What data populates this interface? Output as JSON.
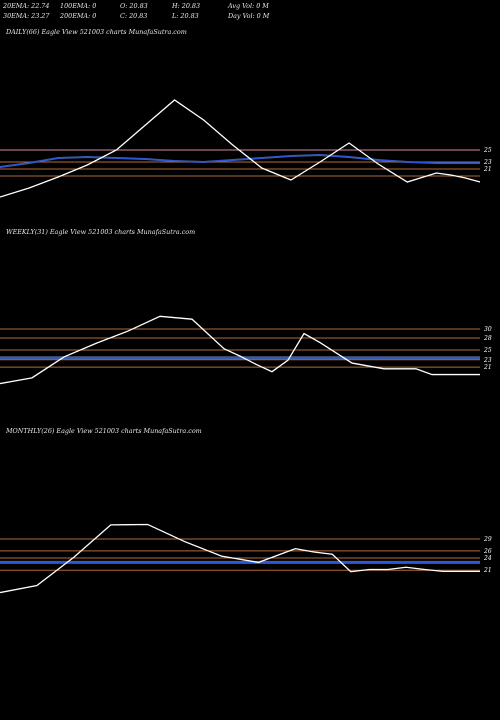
{
  "header": {
    "row1": [
      "20EMA: 22.74",
      "100EMA: 0",
      "O: 20.83",
      "H: 20.83",
      "Avg Vol: 0  M"
    ],
    "row2": [
      "30EMA: 23.27",
      "200EMA: 0",
      "C: 20.83",
      "L: 20.83",
      "Day Vol: 0  M"
    ]
  },
  "colors": {
    "background": "#000000",
    "price": "#ffffff",
    "ema_blue": "#2a55d8",
    "ema_band": "#7fa0e6",
    "level_line": "#b06a3a",
    "level_pink": "#d98aa0",
    "tick": "#ffffff"
  },
  "chart_data": [
    {
      "type": "line",
      "title": "DAILY(66) Eagle  View  521003 charts MunafaSutra.com",
      "yticks": [
        "25",
        "23",
        "21"
      ],
      "ylim": [
        19,
        35
      ],
      "x": [
        0,
        4,
        8,
        12,
        16,
        20,
        24,
        28,
        32,
        36,
        40,
        44,
        48,
        52,
        56,
        60,
        62,
        64,
        66
      ],
      "series": [
        {
          "values": [
            19.3,
            20.2,
            21.3,
            22.5,
            24.0,
            26.5,
            29.0,
            27.0,
            24.5,
            22.2,
            21.0,
            22.8,
            24.7,
            22.6,
            20.8,
            21.7,
            21.5,
            21.2,
            20.8
          ]
        },
        {
          "values": [
            22.3,
            22.7,
            23.2,
            23.3,
            23.2,
            23.1,
            22.9,
            22.8,
            23.0,
            23.2,
            23.4,
            23.5,
            23.3,
            23.0,
            22.8,
            22.7,
            22.7,
            22.7,
            22.7
          ]
        }
      ],
      "levels": [
        24.0,
        22.8,
        22.1,
        21.4
      ]
    },
    {
      "type": "line",
      "title": "WEEKLY(31) Eagle  View  521003 charts MunafaSutra.com",
      "yticks": [
        "30",
        "28",
        "25",
        "23",
        "21"
      ],
      "ylim": [
        13,
        52
      ],
      "x": [
        0,
        2,
        4,
        6,
        8,
        10,
        12,
        14,
        15,
        16,
        17,
        18,
        19,
        20,
        22,
        24,
        26,
        27,
        28,
        29,
        30
      ],
      "series": [
        {
          "values": [
            17.0,
            18.4,
            23.5,
            26.8,
            29.8,
            33.4,
            32.7,
            25.5,
            23.7,
            21.7,
            19.9,
            22.7,
            29.2,
            27.0,
            22.0,
            20.6,
            20.6,
            19.2,
            19.2,
            19.2,
            19.2
          ]
        },
        {
          "values": [
            23.3,
            23.3,
            23.3,
            23.3,
            23.3,
            23.3,
            23.3,
            23.3,
            23.3,
            23.3,
            23.3,
            23.3,
            23.3,
            23.3,
            23.3,
            23.3,
            23.3,
            23.3,
            23.3,
            23.3,
            23.3
          ]
        }
      ],
      "levels": [
        30.3,
        28.1,
        25.2,
        22.8,
        21.0
      ]
    },
    {
      "type": "line",
      "title": "MONTHLY(26) Eagle  View  521003 charts MunafaSutra.com",
      "yticks": [
        "29",
        "26",
        "24",
        "21"
      ],
      "ylim": [
        13,
        56
      ],
      "x": [
        0,
        2,
        4,
        6,
        8,
        10,
        12,
        14,
        16,
        17,
        18,
        19,
        20,
        21,
        22,
        23,
        24,
        25,
        26
      ],
      "series": [
        {
          "values": [
            15.0,
            16.9,
            24.5,
            33.2,
            33.3,
            28.7,
            24.8,
            23.1,
            26.8,
            25.9,
            25.3,
            20.6,
            21.2,
            21.2,
            21.8,
            21.2,
            20.7,
            20.7,
            20.7
          ]
        },
        {
          "values": [
            23.1,
            23.1,
            23.1,
            23.1,
            23.1,
            23.1,
            23.1,
            23.1,
            23.1,
            23.1,
            23.1,
            23.1,
            23.1,
            23.1,
            23.1,
            23.1,
            23.1,
            23.1,
            23.1
          ]
        }
      ],
      "levels": [
        29.4,
        26.2,
        24.3,
        21.0
      ]
    }
  ]
}
